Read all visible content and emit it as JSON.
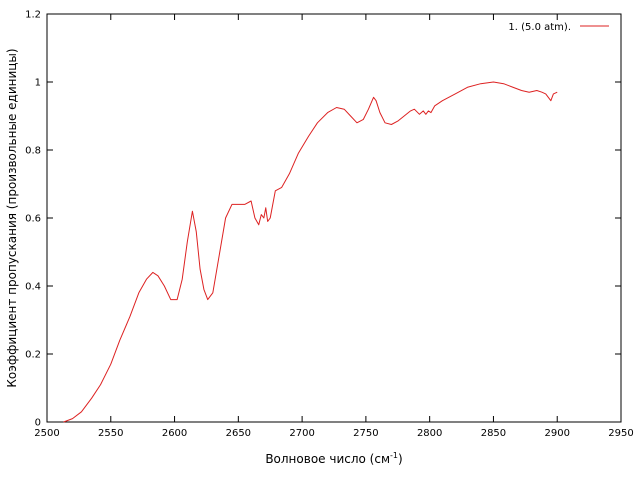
{
  "chart_data": {
    "type": "line",
    "title": "",
    "xlabel": "Волновое число (см",
    "xlabel_sup": "-1",
    "xlabel_end": ")",
    "ylabel": "Коэффициент пропускания (произвольные единицы)",
    "xlim": [
      2500,
      2950
    ],
    "ylim": [
      0,
      1.2
    ],
    "x_ticks": [
      2500,
      2550,
      2600,
      2650,
      2700,
      2750,
      2800,
      2850,
      2900,
      2950
    ],
    "x_tick_labels": [
      "2500",
      "2550",
      "2600",
      "2650",
      "2700",
      "2750",
      "2800",
      "2850",
      "2900",
      "2950"
    ],
    "y_ticks": [
      0,
      0.2,
      0.4,
      0.6,
      0.8,
      1.0,
      1.2
    ],
    "y_tick_labels": [
      "0",
      "0.2",
      "0.4",
      "0.6",
      "0.8",
      "1",
      "1.2"
    ],
    "grid": false,
    "legend_position": "top-right",
    "series": [
      {
        "name": "1. (5.0 atm).",
        "color": "#dd2222",
        "x": [
          2513,
          2520,
          2527,
          2535,
          2542,
          2550,
          2557,
          2565,
          2572,
          2578,
          2583,
          2587,
          2592,
          2597,
          2602,
          2606,
          2610,
          2614,
          2617,
          2620,
          2623,
          2626,
          2630,
          2635,
          2640,
          2645,
          2650,
          2655,
          2660,
          2663,
          2666,
          2668,
          2670,
          2671.5,
          2673,
          2675,
          2677,
          2679,
          2684,
          2690,
          2697,
          2705,
          2712,
          2720,
          2727,
          2733,
          2738,
          2743,
          2748,
          2752,
          2756,
          2758,
          2761,
          2765,
          2770,
          2775,
          2780,
          2785,
          2788,
          2792,
          2795,
          2797,
          2799,
          2801,
          2804,
          2810,
          2820,
          2830,
          2840,
          2850,
          2858,
          2865,
          2872,
          2878,
          2884,
          2888,
          2891,
          2893,
          2895,
          2897,
          2900
        ],
        "y": [
          0.0,
          0.01,
          0.03,
          0.07,
          0.11,
          0.17,
          0.24,
          0.31,
          0.38,
          0.42,
          0.44,
          0.43,
          0.4,
          0.36,
          0.36,
          0.42,
          0.53,
          0.62,
          0.56,
          0.45,
          0.39,
          0.36,
          0.38,
          0.49,
          0.6,
          0.64,
          0.64,
          0.64,
          0.65,
          0.6,
          0.58,
          0.61,
          0.6,
          0.63,
          0.59,
          0.6,
          0.64,
          0.68,
          0.69,
          0.73,
          0.79,
          0.84,
          0.88,
          0.91,
          0.925,
          0.92,
          0.9,
          0.88,
          0.89,
          0.92,
          0.955,
          0.945,
          0.91,
          0.88,
          0.875,
          0.885,
          0.9,
          0.915,
          0.92,
          0.905,
          0.915,
          0.905,
          0.915,
          0.91,
          0.93,
          0.945,
          0.965,
          0.985,
          0.995,
          1.0,
          0.995,
          0.985,
          0.975,
          0.97,
          0.975,
          0.97,
          0.965,
          0.955,
          0.945,
          0.965,
          0.97
        ]
      }
    ]
  }
}
